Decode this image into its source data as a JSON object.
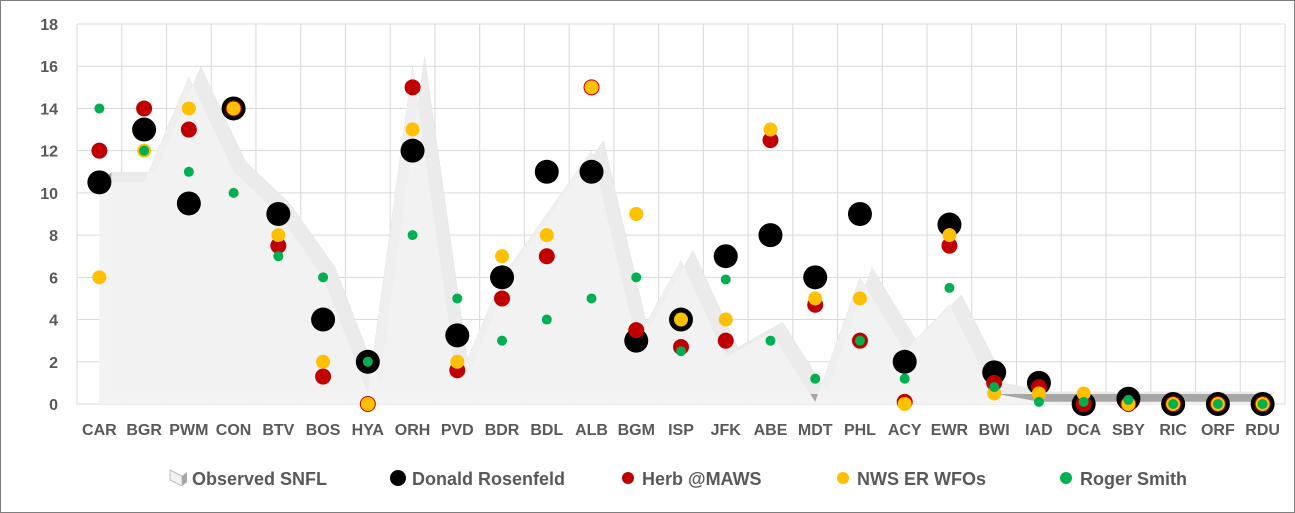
{
  "chart_data": {
    "type": "scatter",
    "title": "",
    "xlabel": "",
    "ylabel": "",
    "ylim": [
      0,
      18
    ],
    "y_ticks": [
      0,
      2,
      4,
      6,
      8,
      10,
      12,
      14,
      16,
      18
    ],
    "grid": true,
    "legend_position": "bottom",
    "categories": [
      "CAR",
      "BGR",
      "PWM",
      "CON",
      "BTV",
      "BOS",
      "HYA",
      "ORH",
      "PVD",
      "BDR",
      "BDL",
      "ALB",
      "BGM",
      "ISP",
      "JFK",
      "ABE",
      "MDT",
      "PHL",
      "ACY",
      "EWR",
      "BWI",
      "IAD",
      "DCA",
      "SBY",
      "RIC",
      "ORF",
      "RDU"
    ],
    "series": [
      {
        "name": "Observed SNFL",
        "style": "area-3d",
        "color": "#f2f2f2",
        "shadow_color": "#a6a6a6",
        "values": [
          10.5,
          10.5,
          15.5,
          11.0,
          9.0,
          6.0,
          0.5,
          16.0,
          1.0,
          6.0,
          9.0,
          12.0,
          3.0,
          6.8,
          2.2,
          3.4,
          0.1,
          6.0,
          2.5,
          4.7,
          0.5,
          0.1,
          0.1,
          0.1,
          0.1,
          0.1,
          0.1
        ]
      },
      {
        "name": "Donald Rosenfeld",
        "color": "#000000",
        "values": [
          10.5,
          13,
          9.5,
          14,
          9,
          4,
          2,
          12,
          3.25,
          6,
          11,
          11,
          3,
          4,
          7,
          8,
          6,
          9,
          2,
          8.5,
          1.5,
          1,
          0,
          0.25,
          0,
          0,
          0
        ]
      },
      {
        "name": "Herb @MAWS",
        "color": "#c00000",
        "values": [
          12,
          14,
          13,
          14,
          7.5,
          1.3,
          0,
          15,
          1.6,
          5,
          7,
          15,
          3.5,
          2.7,
          3,
          12.5,
          4.7,
          3,
          0.1,
          7.5,
          1,
          0.8,
          0,
          0,
          0,
          0,
          0
        ]
      },
      {
        "name": "NWS ER WFOs",
        "color": "#ffc000",
        "values": [
          6,
          12,
          14,
          14,
          8,
          2,
          0,
          13,
          2,
          7,
          8,
          15,
          9,
          4,
          4,
          13,
          5,
          5,
          0,
          8,
          0.5,
          0.5,
          0.5,
          0,
          0,
          0,
          0
        ]
      },
      {
        "name": "Roger Smith",
        "color": "#00b050",
        "values": [
          14,
          12,
          11,
          10,
          7,
          6,
          2,
          8,
          5,
          3,
          4,
          5,
          6,
          2.5,
          5.9,
          3,
          1.2,
          3,
          1.2,
          5.5,
          0.8,
          0.1,
          0.1,
          0.2,
          0,
          0,
          0
        ]
      }
    ]
  }
}
